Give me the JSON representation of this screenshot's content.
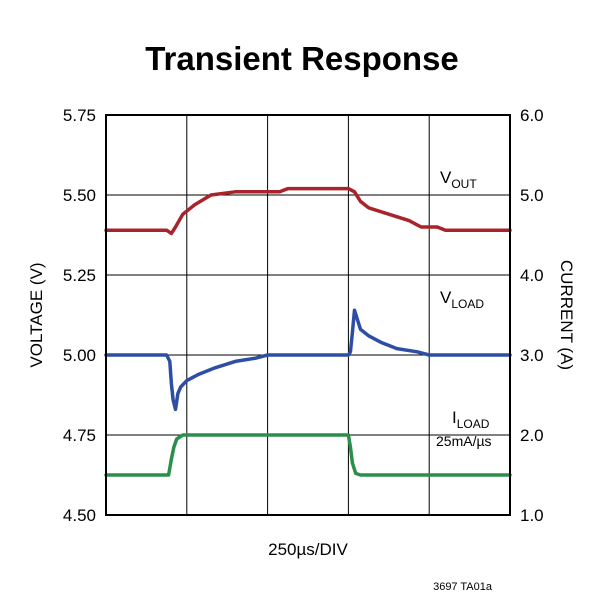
{
  "chart_data": {
    "type": "line",
    "title": "Transient Response",
    "xlabel": "250µs/DIV",
    "ylabel_left": "VOLTAGE (V)",
    "ylabel_right": "CURRENT (A)",
    "ylim_left": [
      4.5,
      5.75
    ],
    "ylim_right": [
      1.0,
      6.0
    ],
    "left_ticks": [
      "4.50",
      "4.75",
      "5.00",
      "5.25",
      "5.50",
      "5.75"
    ],
    "right_ticks": [
      "1.0",
      "2.0",
      "3.0",
      "4.0",
      "5.0",
      "6.0"
    ],
    "xlim": [
      0,
      10
    ],
    "grid": true,
    "series": [
      {
        "name": "VOUT",
        "name_main": "V",
        "name_sub": "OUT",
        "axis": "left",
        "color": "#a8242a",
        "x": [
          0,
          1.5,
          1.62,
          1.72,
          1.9,
          2.2,
          2.6,
          3.2,
          4.3,
          4.5,
          5.0,
          6.0,
          6.15,
          6.3,
          6.5,
          7.0,
          7.5,
          7.8,
          8.2,
          8.4,
          8.6,
          9.0,
          10
        ],
        "y": [
          5.39,
          5.39,
          5.38,
          5.4,
          5.44,
          5.47,
          5.5,
          5.51,
          5.51,
          5.52,
          5.52,
          5.52,
          5.51,
          5.48,
          5.46,
          5.44,
          5.42,
          5.4,
          5.4,
          5.39,
          5.39,
          5.39,
          5.39
        ]
      },
      {
        "name": "VLOAD",
        "name_main": "V",
        "name_sub": "LOAD",
        "axis": "left",
        "color": "#2e4ea5",
        "x": [
          0,
          1.5,
          1.58,
          1.62,
          1.66,
          1.72,
          1.78,
          1.85,
          2.0,
          2.3,
          2.7,
          3.2,
          3.7,
          4.0,
          6.0,
          6.05,
          6.1,
          6.15,
          6.2,
          6.3,
          6.5,
          6.8,
          7.2,
          7.7,
          8.0,
          10
        ],
        "y": [
          5.0,
          5.0,
          4.98,
          4.91,
          4.86,
          4.83,
          4.88,
          4.9,
          4.92,
          4.94,
          4.96,
          4.98,
          4.99,
          5.0,
          5.0,
          5.01,
          5.07,
          5.14,
          5.12,
          5.08,
          5.06,
          5.04,
          5.02,
          5.01,
          5.0,
          5.0
        ]
      },
      {
        "name": "ILOAD",
        "name_main": "I",
        "name_sub": "LOAD",
        "axis": "right",
        "color": "#2a8f4a",
        "x": [
          0,
          1.55,
          1.62,
          1.68,
          1.75,
          1.9,
          6.0,
          6.05,
          6.1,
          6.18,
          6.3,
          6.5,
          10
        ],
        "y": [
          1.5,
          1.5,
          1.7,
          1.85,
          1.95,
          2.0,
          2.0,
          1.85,
          1.65,
          1.52,
          1.5,
          1.5,
          1.5
        ]
      }
    ],
    "annotation": "25mA/µs",
    "footer": "3697 TA01a"
  }
}
